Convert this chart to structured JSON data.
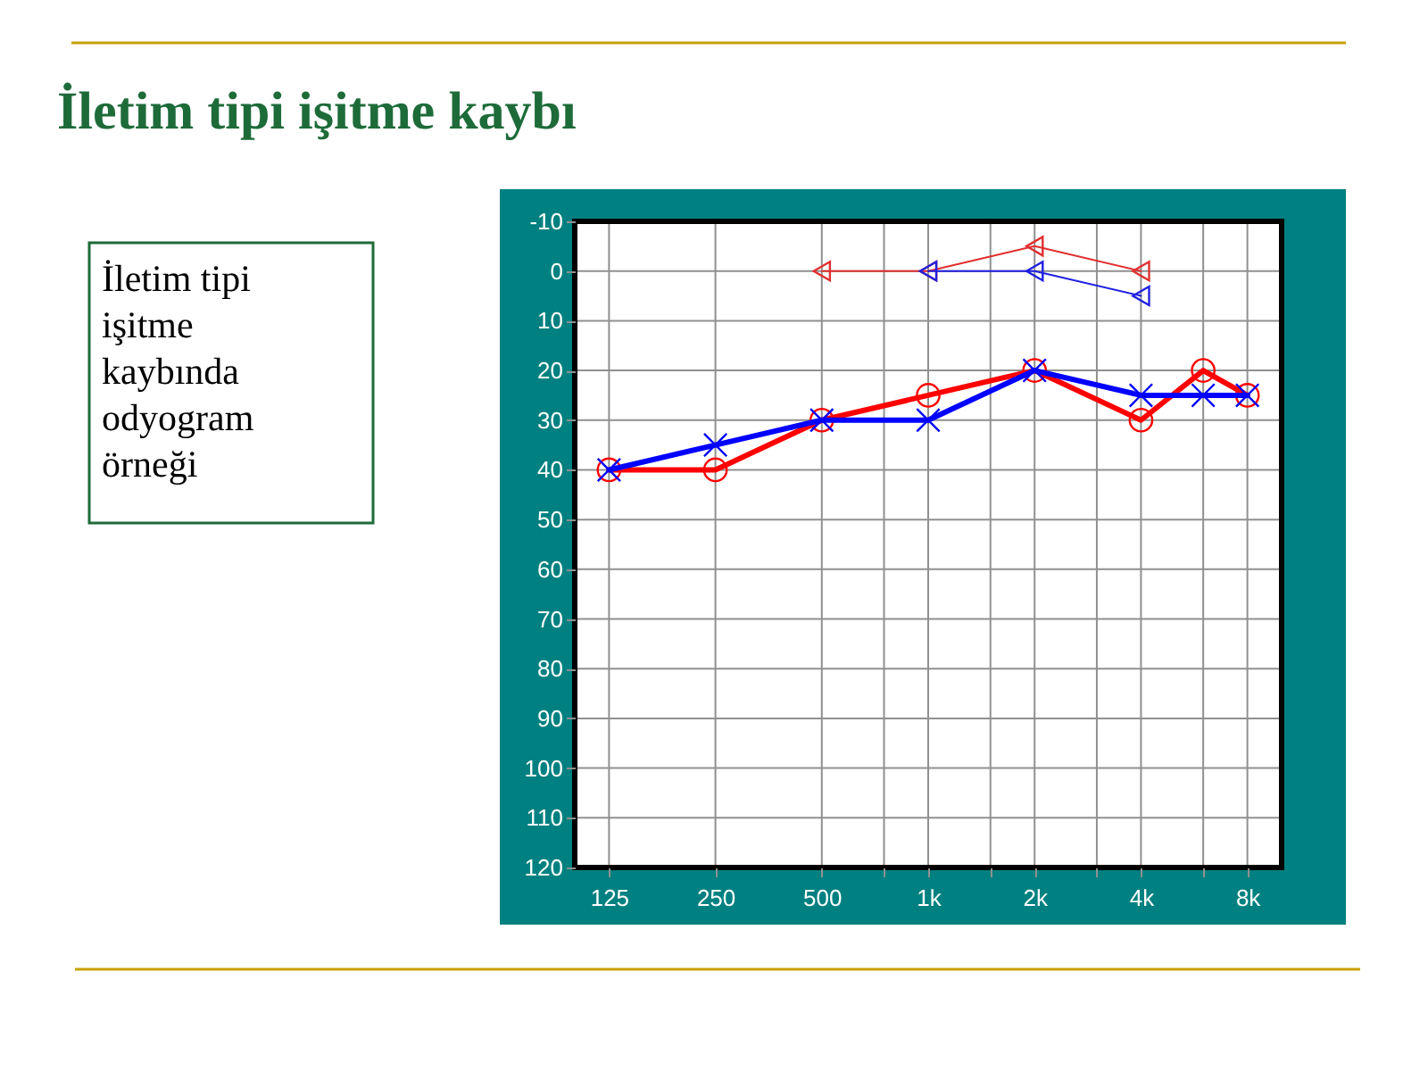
{
  "chart_data": {
    "type": "line",
    "title": "İletim tipi işitme kaybı",
    "annotations": [
      "İletim tipi\nişitme\nkaybında\nodyogram\nörneği"
    ],
    "log": "x",
    "xlim": [
      100,
      10000
    ],
    "xticks": [
      {
        "value": 125,
        "label": "125"
      },
      {
        "value": 250,
        "label": "250"
      },
      {
        "value": 500,
        "label": "500"
      },
      {
        "value": 750,
        "label": null
      },
      {
        "value": 1000,
        "label": "1k"
      },
      {
        "value": 1500,
        "label": null
      },
      {
        "value": 2000,
        "label": "2k"
      },
      {
        "value": 3000,
        "label": null
      },
      {
        "value": 4000,
        "label": "4k"
      },
      {
        "value": 6000,
        "label": null
      },
      {
        "value": 8000,
        "label": "8k"
      }
    ],
    "ylim": [
      120,
      -10
    ],
    "yticks": [
      -10,
      0,
      10,
      20,
      30,
      40,
      50,
      60,
      70,
      80,
      90,
      100,
      110,
      120
    ],
    "grid": true,
    "legend": false,
    "series": [
      {
        "color": "#ff0000",
        "marker": "circle",
        "line_style": "solid",
        "x": [
          125,
          250,
          500,
          1000,
          2000,
          4000,
          6000,
          8000
        ],
        "values": [
          40,
          40,
          30,
          25,
          20,
          30,
          20,
          25
        ]
      },
      {
        "color": "#0000ff",
        "marker": "cross",
        "line_style": "solid",
        "x": [
          125,
          250,
          500,
          1000,
          2000,
          4000,
          6000,
          8000
        ],
        "values": [
          40,
          35,
          30,
          30,
          20,
          25,
          25,
          25
        ]
      },
      {
        "color": "#e03030",
        "marker": "triangle",
        "line_style": "solid",
        "x": [
          500,
          1000,
          2000,
          4000
        ],
        "values": [
          0,
          0,
          -5,
          0
        ]
      },
      {
        "color": "#2020e0",
        "marker": "triangle",
        "line_style": "solid",
        "x": [
          1000,
          2000,
          4000
        ],
        "values": [
          0,
          0,
          5
        ]
      }
    ]
  }
}
